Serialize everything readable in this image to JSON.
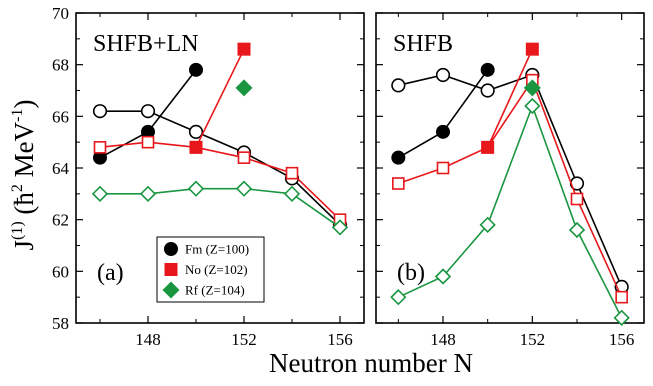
{
  "figure": {
    "ylabel": "J(1) (ħ2 MeV-1)",
    "ylabel_parts": {
      "main": "J",
      "sup1": "(1)",
      "open": " (",
      "hbar": "ħ",
      "sup2": "2",
      "unit": " MeV",
      "sup3": "-1",
      "close": ")"
    },
    "xlabel": "Neutron number N",
    "colors": {
      "Fm": "#000000",
      "No": "#e8171b",
      "Rf": "#1a9641"
    }
  },
  "chart_data": [
    {
      "type": "line",
      "panel_title": "SHFB+LN",
      "panel_label": "(a)",
      "xlim": [
        145,
        157
      ],
      "ylim": [
        58,
        70
      ],
      "x_ticks": [
        148,
        152,
        156
      ],
      "y_ticks": [
        58,
        60,
        62,
        64,
        66,
        68,
        70
      ],
      "legend": {
        "position": "bottom-center",
        "entries": [
          {
            "label": "Fm (Z=100)",
            "color": "#000000",
            "marker": "circle"
          },
          {
            "label": "No (Z=102)",
            "color": "#e8171b",
            "marker": "square"
          },
          {
            "label": "Rf (Z=104)",
            "color": "#1a9641",
            "marker": "diamond"
          }
        ]
      },
      "series": [
        {
          "element": "Fm",
          "marker": "circle",
          "filled": false,
          "x": [
            146,
            148,
            150,
            152,
            154,
            156
          ],
          "y": [
            66.2,
            66.2,
            65.4,
            64.6,
            63.6,
            61.8
          ]
        },
        {
          "element": "Fm",
          "marker": "circle",
          "filled": true,
          "x": [
            146,
            148,
            150
          ],
          "y": [
            64.4,
            65.4,
            67.8
          ]
        },
        {
          "element": "No",
          "marker": "square",
          "filled": false,
          "x": [
            146,
            148,
            150,
            152,
            154,
            156
          ],
          "y": [
            64.8,
            65.0,
            64.8,
            64.4,
            63.8,
            62.0
          ]
        },
        {
          "element": "No",
          "marker": "square",
          "filled": true,
          "x": [
            150,
            152
          ],
          "y": [
            64.8,
            68.6
          ]
        },
        {
          "element": "Rf",
          "marker": "diamond",
          "filled": false,
          "x": [
            146,
            148,
            150,
            152,
            154,
            156
          ],
          "y": [
            63.0,
            63.0,
            63.2,
            63.2,
            63.0,
            61.7
          ]
        },
        {
          "element": "Rf",
          "marker": "diamond",
          "filled": true,
          "x": [
            152
          ],
          "y": [
            67.1
          ]
        }
      ]
    },
    {
      "type": "line",
      "panel_title": "SHFB",
      "panel_label": "(b)",
      "xlim": [
        145,
        157
      ],
      "ylim": [
        58,
        70
      ],
      "x_ticks": [
        148,
        152,
        156
      ],
      "y_ticks": [
        58,
        60,
        62,
        64,
        66,
        68,
        70
      ],
      "series": [
        {
          "element": "Fm",
          "marker": "circle",
          "filled": false,
          "x": [
            146,
            148,
            150,
            152,
            154,
            156
          ],
          "y": [
            67.2,
            67.6,
            67.0,
            67.6,
            63.4,
            59.4
          ]
        },
        {
          "element": "Fm",
          "marker": "circle",
          "filled": true,
          "x": [
            146,
            148,
            150
          ],
          "y": [
            64.4,
            65.4,
            67.8
          ]
        },
        {
          "element": "No",
          "marker": "square",
          "filled": false,
          "x": [
            146,
            148,
            150,
            152,
            154,
            156
          ],
          "y": [
            63.4,
            64.0,
            64.8,
            67.4,
            62.8,
            59.0
          ]
        },
        {
          "element": "No",
          "marker": "square",
          "filled": true,
          "x": [
            150,
            152
          ],
          "y": [
            64.8,
            68.6
          ]
        },
        {
          "element": "Rf",
          "marker": "diamond",
          "filled": false,
          "x": [
            146,
            148,
            150,
            152,
            154,
            156
          ],
          "y": [
            59.0,
            59.8,
            61.8,
            66.4,
            61.6,
            58.2
          ]
        },
        {
          "element": "Rf",
          "marker": "diamond",
          "filled": true,
          "x": [
            152
          ],
          "y": [
            67.1
          ]
        }
      ]
    }
  ]
}
